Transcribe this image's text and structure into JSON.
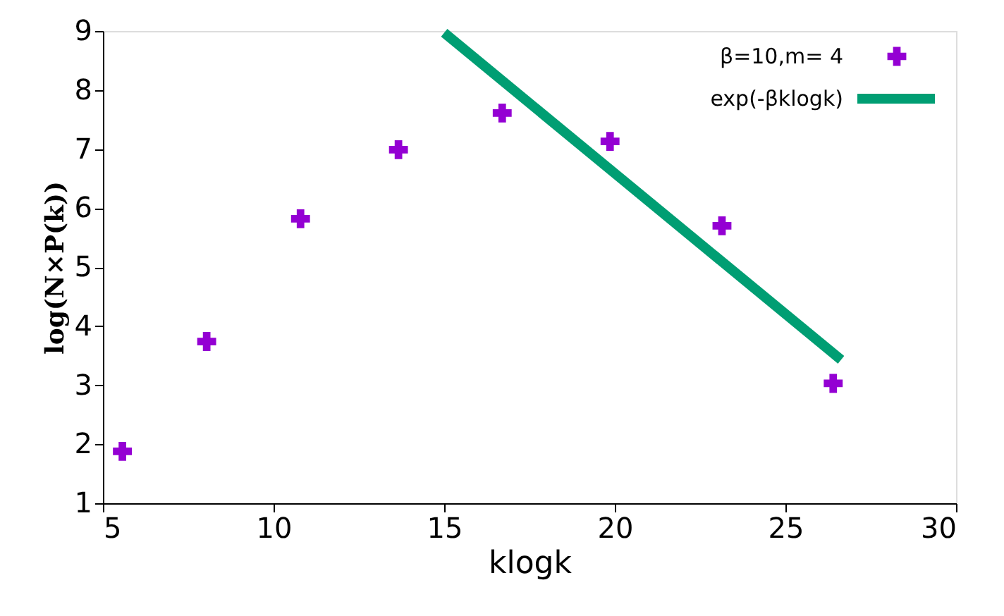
{
  "chart_data": {
    "type": "scatter",
    "xlabel": "klogk",
    "ylabel": "log(N×P(k))",
    "series": [
      {
        "name": "β=10,m= 4",
        "color": "#9400d3",
        "x": [
          5.57,
          8.04,
          10.79,
          13.66,
          16.7,
          19.86,
          23.14,
          26.4
        ],
        "values": [
          1.88,
          3.74,
          5.82,
          6.99,
          7.61,
          7.13,
          5.7,
          3.03
        ]
      },
      {
        "name": "exp(-βklogk)",
        "type": "line",
        "marker": "none",
        "color": "#009e73",
        "x": [
          15,
          26.63
        ],
        "values": [
          8.97,
          3.43
        ]
      }
    ],
    "xlim": [
      5,
      30
    ],
    "xticks": [
      5,
      10,
      15,
      20,
      25,
      30
    ],
    "ylim": [
      1,
      9
    ],
    "yticks": [
      1,
      2,
      3,
      4,
      5,
      6,
      7,
      8,
      9
    ],
    "grid": false,
    "legend": "top right",
    "marker": "cross",
    "line_style": "solid"
  }
}
